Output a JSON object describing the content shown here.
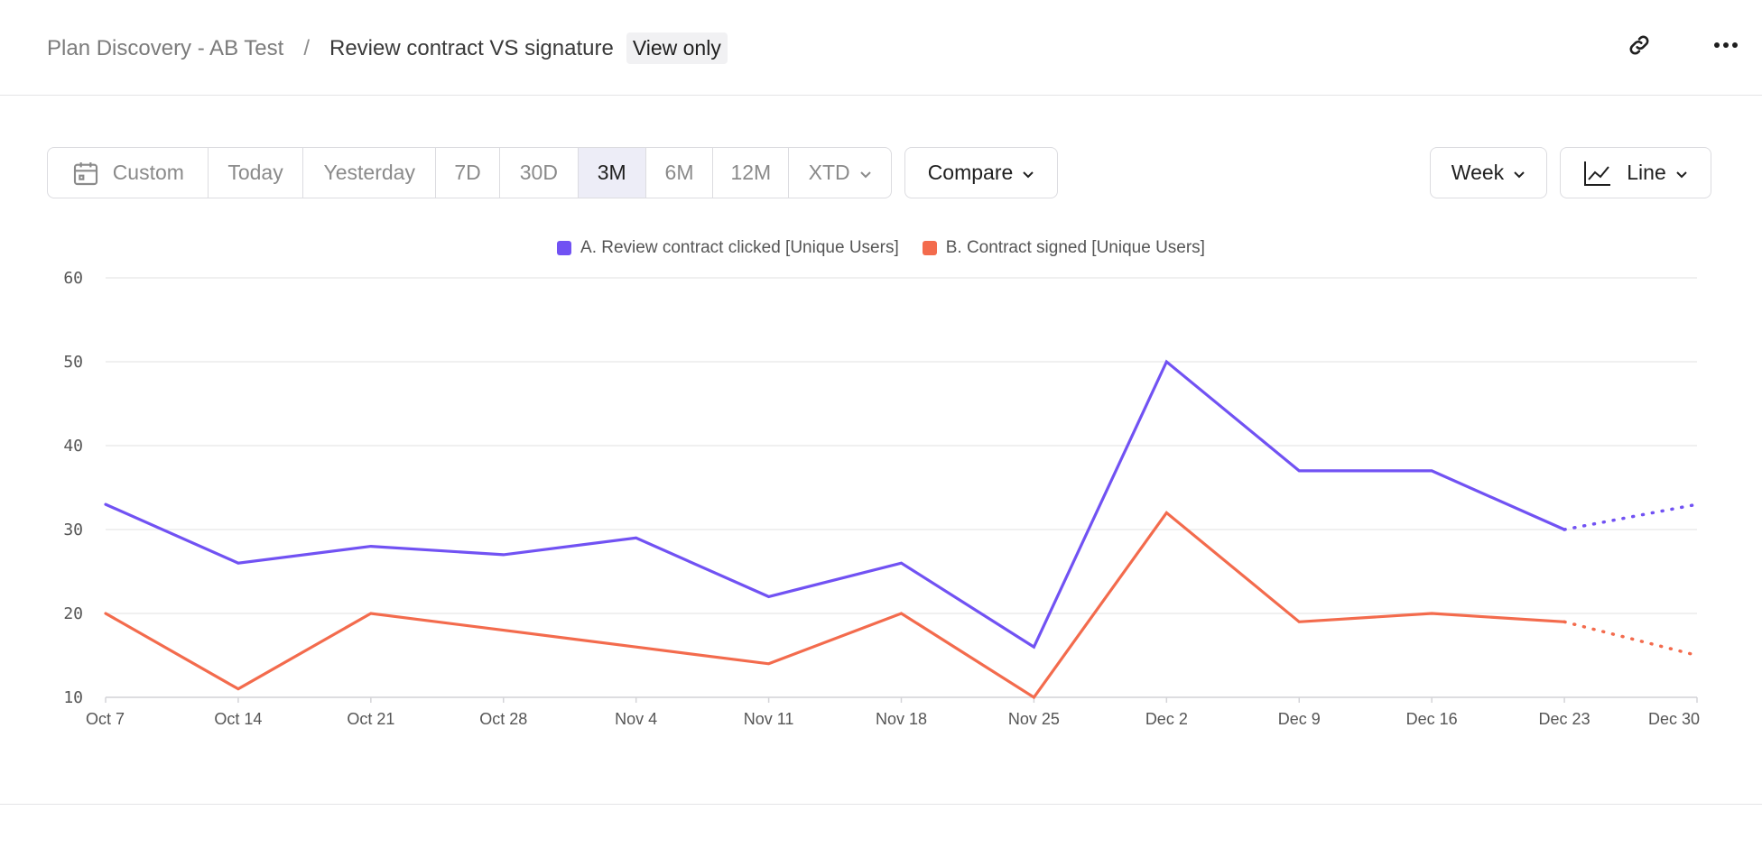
{
  "breadcrumb": {
    "parent": "Plan Discovery - AB Test",
    "separator": "/",
    "current": "Review contract VS signature",
    "badge": "View only"
  },
  "header_icons": [
    "link-icon",
    "more-icon"
  ],
  "date_range": {
    "options": [
      "Custom",
      "Today",
      "Yesterday",
      "7D",
      "30D",
      "3M",
      "6M",
      "12M",
      "XTD"
    ],
    "selected": "3M"
  },
  "compare_label": "Compare",
  "interval_label": "Week",
  "chart_type_label": "Line",
  "colors": {
    "series_a": "#7152f3",
    "series_b": "#f36b4d",
    "active_bg": "#ededf7"
  },
  "chart_data": {
    "type": "line",
    "x": [
      "Oct 7",
      "Oct 14",
      "Oct 21",
      "Oct 28",
      "Nov 4",
      "Nov 11",
      "Nov 18",
      "Nov 25",
      "Dec 2",
      "Dec 9",
      "Dec 16",
      "Dec 23",
      "Dec 30"
    ],
    "yticks": [
      10,
      20,
      30,
      40,
      50,
      60
    ],
    "ylim": [
      10,
      60
    ],
    "grid": true,
    "legend": "top-center",
    "series": [
      {
        "name": "A. Review contract clicked [Unique Users]",
        "color": "#7152f3",
        "values": [
          33,
          26,
          28,
          27,
          29,
          22,
          26,
          16,
          50,
          37,
          37,
          30,
          33
        ],
        "projected_from_index": 11
      },
      {
        "name": "B. Contract signed [Unique Users]",
        "color": "#f36b4d",
        "values": [
          20,
          11,
          20,
          18,
          16,
          14,
          20,
          10,
          32,
          19,
          20,
          19,
          15
        ],
        "projected_from_index": 11
      }
    ]
  }
}
